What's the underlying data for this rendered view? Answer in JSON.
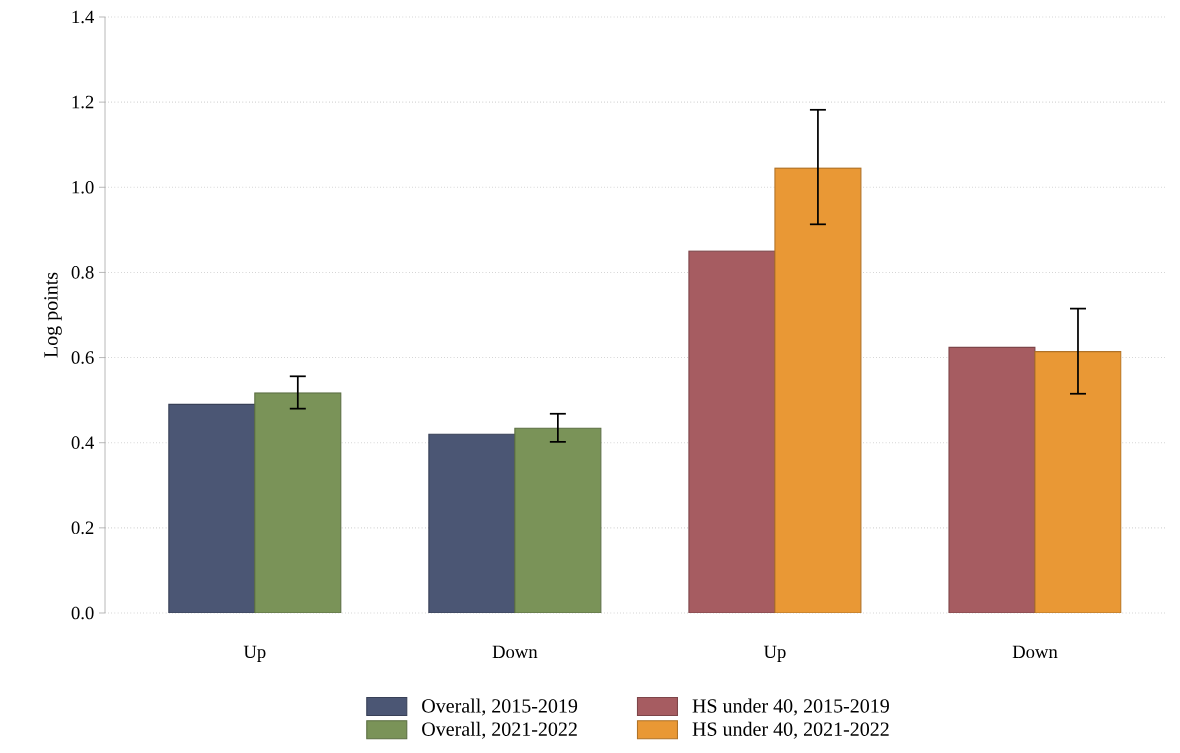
{
  "chart_data": {
    "type": "bar",
    "ylabel": "Log points",
    "categories": [
      "Up",
      "Down",
      "Up",
      "Down"
    ],
    "series": [
      {
        "name": "Overall, 2015-2019",
        "color": "#4b5674",
        "values": [
          0.49,
          0.42,
          null,
          null
        ]
      },
      {
        "name": "Overall, 2021-2022",
        "color": "#7a9358",
        "values": [
          0.517,
          0.434,
          null,
          null
        ],
        "errors": [
          [
            0.48,
            0.556
          ],
          [
            0.402,
            0.468
          ],
          null,
          null
        ]
      },
      {
        "name": "HS under 40, 2015-2019",
        "color": "#a65c61",
        "values": [
          null,
          null,
          0.85,
          0.624
        ]
      },
      {
        "name": "HS under 40, 2021-2022",
        "color": "#e99835",
        "values": [
          null,
          null,
          1.045,
          0.614
        ],
        "errors": [
          null,
          null,
          [
            0.913,
            1.182
          ],
          [
            0.515,
            0.715
          ]
        ]
      }
    ],
    "ylim": [
      0,
      1.4
    ],
    "yticks": [
      {
        "value": 0,
        "label": "0.0"
      },
      0.2,
      0.4,
      0.6,
      0.8,
      {
        "value": 1,
        "label": "1.0"
      },
      1.2,
      1.4
    ],
    "grid": "y",
    "legend": "bottom"
  }
}
